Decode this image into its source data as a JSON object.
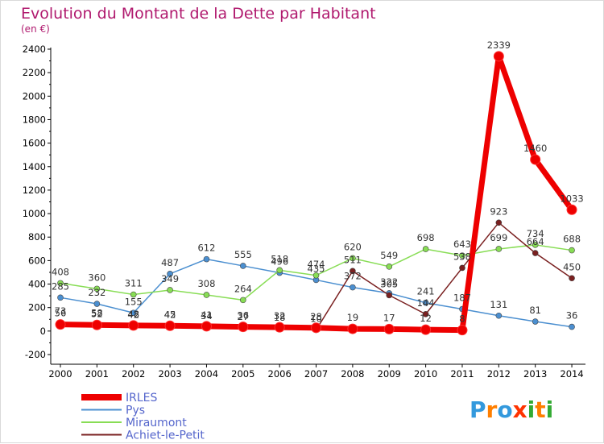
{
  "chart_data": {
    "type": "line",
    "title": "Evolution du Montant de la Dette par Habitant",
    "subtitle": "(en €)",
    "x": [
      "2000",
      "2001",
      "2002",
      "2003",
      "2004",
      "2005",
      "2006",
      "2007",
      "2008",
      "2009",
      "2010",
      "2011",
      "2012",
      "2013",
      "2014"
    ],
    "yticks": [
      "2400",
      "2200",
      "2000",
      "1800",
      "1600",
      "1400",
      "1200",
      "1000",
      "800",
      "600",
      "400",
      "200",
      "0",
      "-200"
    ],
    "ylim": [
      -200,
      2400
    ],
    "series": [
      {
        "name": "IRLES",
        "color": "#ee0000",
        "values": [
          56,
          52,
          48,
          45,
          41,
          36,
          32,
          28,
          19,
          17,
          12,
          8,
          2339,
          1460,
          1033
        ],
        "labels": [
          "56",
          "52",
          "48",
          "45",
          "41",
          "36",
          "32",
          "28",
          "19",
          "17",
          "12",
          "8",
          "2339",
          "1460",
          "1033"
        ]
      },
      {
        "name": "Pys",
        "color": "#4b8fd0",
        "values": [
          285,
          232,
          155,
          487,
          612,
          555,
          496,
          435,
          372,
          322,
          241,
          187,
          131,
          81,
          36
        ],
        "labels": [
          "285",
          "232",
          "155",
          "487",
          "612",
          "555",
          "496",
          "435",
          "372",
          "322",
          "241",
          "187",
          "131",
          "81",
          "36"
        ]
      },
      {
        "name": "Miraumont",
        "color": "#88dd55",
        "values": [
          408,
          360,
          311,
          349,
          308,
          264,
          518,
          474,
          620,
          549,
          698,
          643,
          699,
          734,
          688
        ],
        "labels": [
          "408",
          "360",
          "311",
          "349",
          "308",
          "264",
          "518",
          "474",
          "620",
          "549",
          "698",
          "643",
          "699",
          "734",
          "688"
        ]
      },
      {
        "name": "Achiet-le-Petit",
        "color": "#7a2020",
        "values": [
          73,
          58,
          42,
          42,
          34,
          27,
          18,
          10,
          511,
          305,
          144,
          538,
          923,
          664,
          450
        ],
        "labels": [
          "73",
          "58",
          "42",
          "42",
          "34",
          "27",
          "18",
          "10",
          "511",
          "305",
          "144",
          "538",
          "923",
          "664",
          "450"
        ]
      }
    ],
    "legend_position": "bottom-left",
    "grid": false
  },
  "logo": {
    "text": "Proxiti",
    "letters": [
      "P",
      "r",
      "o",
      "x",
      "i",
      "t",
      "i"
    ],
    "colors": [
      "#3399dd",
      "#ff7f00",
      "#3399dd",
      "#ff3300",
      "#33aa33",
      "#ff7f00",
      "#33aa33"
    ]
  }
}
